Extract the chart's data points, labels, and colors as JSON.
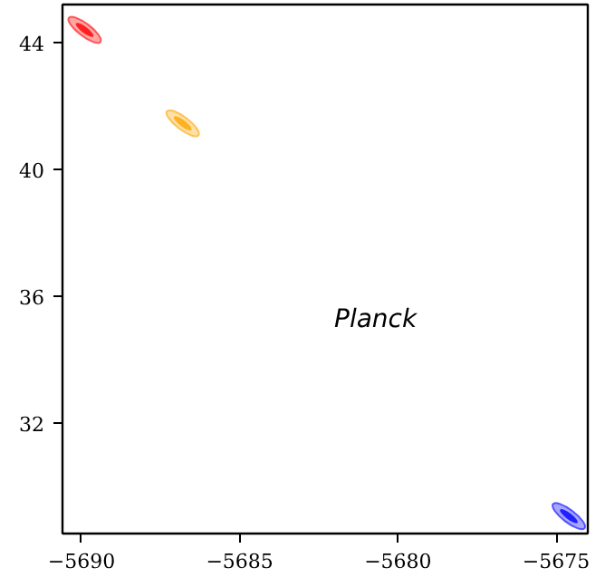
{
  "chart_data": {
    "type": "scatter",
    "series": [
      {
        "color": "#ff0000",
        "x": [
          -5689.9
        ],
        "values": [
          44.4
        ]
      },
      {
        "color": "#ffa500",
        "x": [
          -5686.8
        ],
        "values": [
          41.45
        ]
      },
      {
        "color": "#0000ff",
        "x": [
          -5674.6
        ],
        "values": [
          29.05
        ]
      }
    ],
    "xlim": [
      -5690.6,
      -5674
    ],
    "ylim": [
      28.5,
      45.2
    ],
    "xticks": [
      {
        "value": -5690,
        "label": "−5690"
      },
      {
        "value": -5685,
        "label": "−5685"
      },
      {
        "value": -5680,
        "label": "−5680"
      },
      {
        "value": -5675,
        "label": "−5675"
      }
    ],
    "yticks": [
      32,
      36,
      40,
      44
    ],
    "annotations": [
      "Planck"
    ],
    "grid": false
  }
}
